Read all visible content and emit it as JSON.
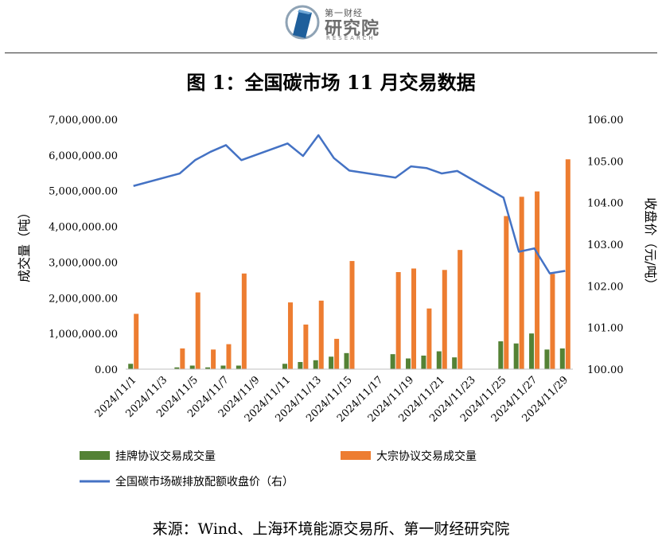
{
  "header": {
    "brand_top": "第一财经",
    "brand_main": "研究院",
    "brand_sub": "RESEARCH"
  },
  "colors": {
    "listed_bar": "#548235",
    "block_bar": "#ED7D31",
    "price_line": "#4472C4"
  },
  "chart_data": {
    "type": "bar+line",
    "title": "图 1：全国碳市场 11 月交易数据",
    "ylabel": "成交量（吨）",
    "y2label": "收盘价（元/吨）",
    "ylim": [
      0,
      7000000
    ],
    "y2lim": [
      100,
      106
    ],
    "y_ticks": [
      "0.00",
      "1,000,000.00",
      "2,000,000.00",
      "3,000,000.00",
      "4,000,000.00",
      "5,000,000.00",
      "6,000,000.00",
      "7,000,000.00"
    ],
    "y2_ticks": [
      "100.00",
      "101.00",
      "102.00",
      "103.00",
      "104.00",
      "105.00",
      "106.00"
    ],
    "x_tick_labels": [
      "2024/11/1",
      "2024/11/3",
      "2024/11/5",
      "2024/11/7",
      "2024/11/9",
      "2024/11/11",
      "2024/11/13",
      "2024/11/15",
      "2024/11/17",
      "2024/11/19",
      "2024/11/21",
      "2024/11/23",
      "2024/11/25",
      "2024/11/27",
      "2024/11/29"
    ],
    "days": [
      1,
      2,
      3,
      4,
      5,
      6,
      7,
      8,
      9,
      10,
      11,
      12,
      13,
      14,
      15,
      16,
      17,
      18,
      19,
      20,
      21,
      22,
      23,
      24,
      25,
      26,
      27,
      28,
      29
    ],
    "legend_position": "bottom",
    "series": [
      {
        "name": "挂牌协议交易成交量",
        "kind": "bar",
        "axis": "left",
        "values": [
          150000,
          null,
          null,
          50000,
          100000,
          50000,
          100000,
          100000,
          null,
          null,
          150000,
          200000,
          250000,
          350000,
          450000,
          null,
          null,
          420000,
          300000,
          380000,
          500000,
          330000,
          null,
          null,
          780000,
          720000,
          1000000,
          550000,
          580000
        ]
      },
      {
        "name": "大宗协议交易成交量",
        "kind": "bar",
        "axis": "left",
        "values": [
          1550000,
          null,
          null,
          580000,
          2150000,
          550000,
          700000,
          2680000,
          null,
          null,
          1870000,
          1250000,
          1920000,
          850000,
          3030000,
          null,
          null,
          2720000,
          2820000,
          1700000,
          2780000,
          3340000,
          null,
          null,
          4290000,
          4830000,
          4980000,
          2670000,
          5880000
        ]
      },
      {
        "name": "全国碳市场碳排放配额收盘价（右）",
        "kind": "line",
        "axis": "right",
        "values": [
          104.4,
          null,
          null,
          104.7,
          105.02,
          105.22,
          105.38,
          105.02,
          null,
          null,
          105.42,
          105.12,
          105.62,
          105.07,
          104.77,
          null,
          null,
          104.6,
          104.87,
          104.83,
          104.7,
          104.76,
          null,
          null,
          104.12,
          102.82,
          102.9,
          102.3,
          102.36
        ]
      }
    ]
  },
  "source": "来源：Wind、上海环境能源交易所、第一财经研究院"
}
